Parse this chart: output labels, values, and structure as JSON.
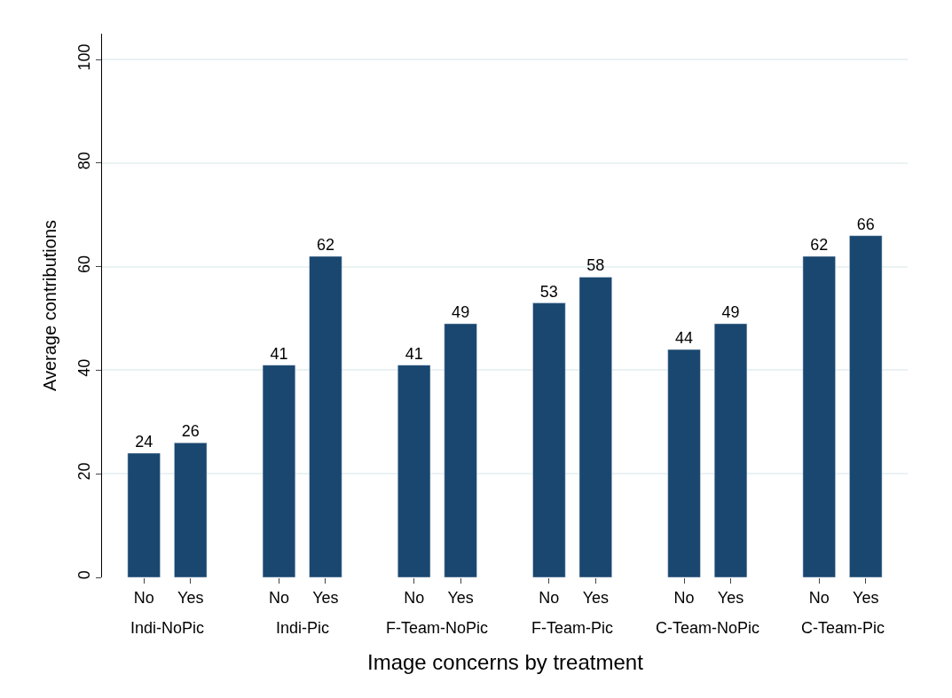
{
  "chart_data": {
    "type": "bar",
    "xlabel": "Image concerns by treatment",
    "ylabel": "Average contributions",
    "categories": [
      "No",
      "Yes",
      "No",
      "Yes",
      "No",
      "Yes",
      "No",
      "Yes",
      "No",
      "Yes",
      "No",
      "Yes"
    ],
    "values": [
      24,
      26,
      41,
      62,
      41,
      49,
      53,
      58,
      44,
      49,
      62,
      66
    ],
    "color": "#1a476f",
    "annotations": [
      "Indi-NoPic",
      "Indi-Pic",
      "F-Team-NoPic",
      "F-Team-Pic",
      "C-Team-NoPic",
      "C-Team-Pic"
    ],
    "ylim": [
      0,
      105
    ],
    "yticks": [
      0,
      20,
      40,
      60,
      80,
      100
    ],
    "grid": "y",
    "data_labels": true,
    "legend": false
  }
}
